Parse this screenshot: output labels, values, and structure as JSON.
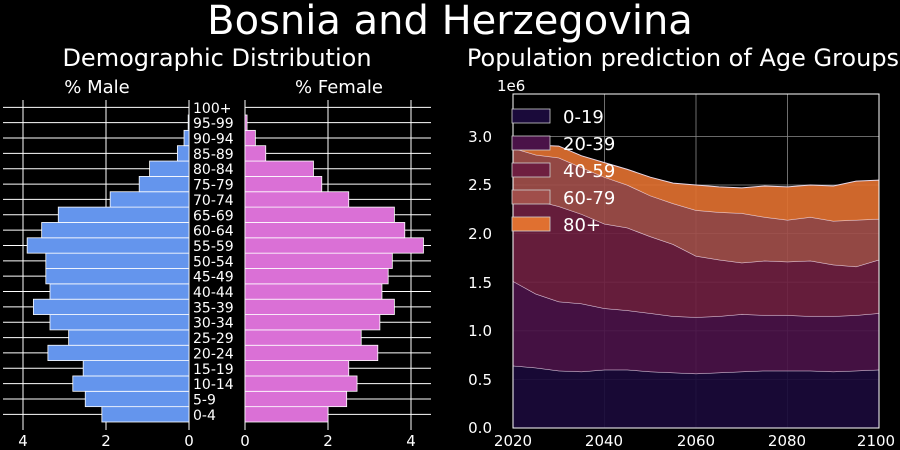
{
  "title": "Bosnia and Herzegovina",
  "pyramid": {
    "title": "Demographic Distribution",
    "male_label": "% Male",
    "female_label": "% Female",
    "male_color": "#6495ED",
    "female_color": "#DA70D6",
    "x_ticks_male": [
      "4",
      "2",
      "0"
    ],
    "x_ticks_female": [
      "0",
      "2",
      "4"
    ]
  },
  "area": {
    "title": "Population prediction of Age Groups",
    "offset_label": "1e6",
    "y_ticks": [
      "0.0",
      "0.5",
      "1.0",
      "1.5",
      "2.0",
      "2.5",
      "3.0"
    ],
    "x_ticks": [
      "2020",
      "2040",
      "2060",
      "2080",
      "2100"
    ]
  },
  "chart_data": [
    {
      "type": "bar",
      "orientation": "horizontal",
      "title": "Demographic Distribution",
      "categories": [
        "0-4",
        "5-9",
        "10-14",
        "15-19",
        "20-24",
        "25-29",
        "30-34",
        "35-39",
        "40-44",
        "45-49",
        "50-54",
        "55-59",
        "60-64",
        "65-69",
        "70-74",
        "75-79",
        "80-84",
        "85-89",
        "90-94",
        "95-99",
        "100+"
      ],
      "series": [
        {
          "name": "% Male",
          "color": "#6495ED",
          "values": [
            2.1,
            2.5,
            2.8,
            2.55,
            3.4,
            2.9,
            3.35,
            3.75,
            3.35,
            3.45,
            3.45,
            3.9,
            3.55,
            3.15,
            1.9,
            1.2,
            0.95,
            0.28,
            0.12,
            0.02,
            0.0
          ]
        },
        {
          "name": "% Female",
          "color": "#DA70D6",
          "values": [
            2.0,
            2.45,
            2.7,
            2.5,
            3.2,
            2.8,
            3.25,
            3.6,
            3.3,
            3.45,
            3.55,
            4.3,
            3.85,
            3.6,
            2.5,
            1.85,
            1.65,
            0.5,
            0.25,
            0.05,
            0.0
          ]
        }
      ],
      "xlim": [
        0,
        4.5
      ]
    },
    {
      "type": "area",
      "stacked": true,
      "title": "Population prediction of Age Groups",
      "x": [
        2020,
        2025,
        2030,
        2035,
        2040,
        2045,
        2050,
        2055,
        2060,
        2065,
        2070,
        2075,
        2080,
        2085,
        2090,
        2095,
        2100
      ],
      "xlim": [
        2020,
        2100
      ],
      "ylim": [
        0,
        3.3
      ],
      "y_scale_note": "1e6",
      "legend_position": "top-left",
      "series": [
        {
          "name": "0-19",
          "color": "#1a0a3a",
          "values": [
            0.64,
            0.62,
            0.59,
            0.58,
            0.6,
            0.6,
            0.58,
            0.57,
            0.56,
            0.57,
            0.58,
            0.59,
            0.59,
            0.59,
            0.58,
            0.59,
            0.6
          ]
        },
        {
          "name": "20-39",
          "color": "#4a1248",
          "values": [
            0.87,
            0.76,
            0.71,
            0.7,
            0.63,
            0.61,
            0.6,
            0.58,
            0.58,
            0.58,
            0.59,
            0.57,
            0.57,
            0.56,
            0.57,
            0.57,
            0.58
          ]
        },
        {
          "name": "40-59",
          "color": "#6e1f40",
          "values": [
            0.92,
            0.96,
            0.98,
            0.92,
            0.87,
            0.85,
            0.79,
            0.74,
            0.63,
            0.58,
            0.53,
            0.56,
            0.55,
            0.57,
            0.53,
            0.5,
            0.55
          ]
        },
        {
          "name": "60-79",
          "color": "#a04e4a",
          "values": [
            0.45,
            0.47,
            0.5,
            0.48,
            0.48,
            0.44,
            0.42,
            0.42,
            0.47,
            0.49,
            0.51,
            0.45,
            0.43,
            0.45,
            0.45,
            0.48,
            0.42
          ]
        },
        {
          "name": "80+",
          "color": "#e07030",
          "values": [
            0.08,
            0.1,
            0.12,
            0.12,
            0.15,
            0.16,
            0.19,
            0.21,
            0.26,
            0.26,
            0.26,
            0.32,
            0.34,
            0.33,
            0.36,
            0.4,
            0.4
          ]
        }
      ]
    }
  ]
}
